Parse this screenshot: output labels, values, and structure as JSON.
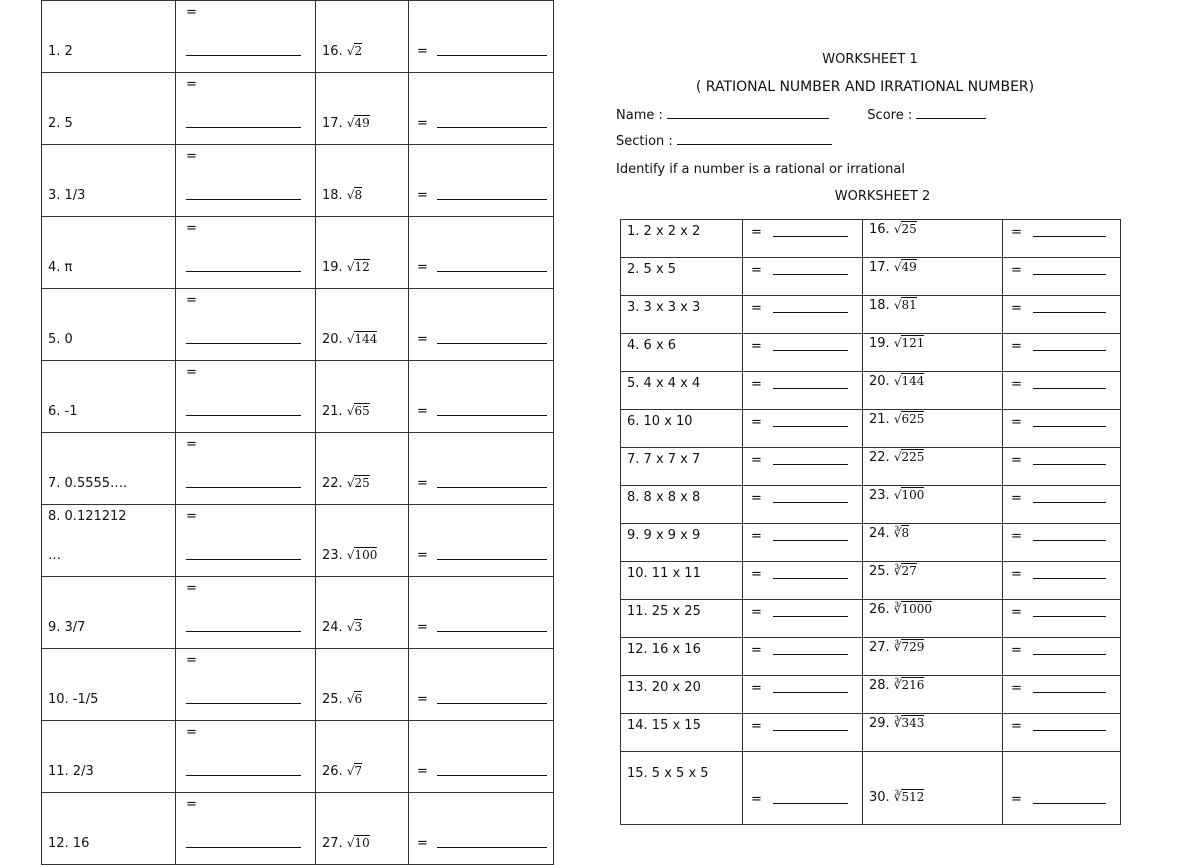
{
  "left_table": {
    "rows": [
      {
        "left": "1. 2",
        "num": "16.",
        "sym": "√",
        "rad": "2"
      },
      {
        "left": "2. 5",
        "num": "17.",
        "sym": "√",
        "rad": "49"
      },
      {
        "left": "3. 1/3",
        "num": "18.",
        "sym": "√",
        "rad": "8"
      },
      {
        "left": "4. π",
        "num": "19.",
        "sym": "√",
        "rad": "12"
      },
      {
        "left": "5. 0",
        "num": "20.",
        "sym": "√",
        "rad": "144"
      },
      {
        "left": "6. -1",
        "num": "21.",
        "sym": "√",
        "rad": "65"
      },
      {
        "left": "7. 0.5555….",
        "num": "22.",
        "sym": "√",
        "rad": "25"
      },
      {
        "left": "8. 0.121212",
        "left2": "…",
        "num": "23.",
        "sym": "√",
        "rad": "100"
      },
      {
        "left": "9. 3/7",
        "num": "24.",
        "sym": "√",
        "rad": "3"
      },
      {
        "left": "10. -1/5",
        "num": "25.",
        "sym": "√",
        "rad": "6"
      },
      {
        "left": "11. 2/3",
        "num": "26.",
        "sym": "√",
        "rad": "7"
      },
      {
        "left": "12. 16",
        "num": "27.",
        "sym": "√",
        "rad": "10"
      }
    ],
    "eq": "="
  },
  "header": {
    "title1": "WORKSHEET 1",
    "subtitle": "( RATIONAL NUMBER AND IRRATIONAL NUMBER)",
    "name_label": "Name :",
    "score_label": "Score :",
    "section_label": "Section :",
    "instruction": "Identify if a number is a rational or irrational",
    "title2": "WORKSHEET 2"
  },
  "right_table": {
    "rows": [
      {
        "left": "1. 2 x 2 x 2",
        "num": "16.",
        "sym": "√",
        "rad": "25"
      },
      {
        "left": "2. 5 x 5",
        "num": "17.",
        "sym": "√",
        "rad": "49"
      },
      {
        "left": "3. 3 x 3 x 3",
        "num": "18.",
        "sym": "√",
        "rad": "81"
      },
      {
        "left": "4. 6 x 6",
        "num": "19.",
        "sym": "√",
        "rad": "121"
      },
      {
        "left": "5. 4 x 4 x 4",
        "num": "20.",
        "sym": "√",
        "rad": "144"
      },
      {
        "left": "6. 10 x 10",
        "num": "21.",
        "sym": "√",
        "rad": "625"
      },
      {
        "left": "7. 7 x 7 x 7",
        "num": "22.",
        "sym": "√",
        "rad": "225"
      },
      {
        "left": "8. 8 x 8 x 8",
        "num": "23.",
        "sym": "√",
        "rad": "100"
      },
      {
        "left": "9. 9 x 9 x 9",
        "num": "24.",
        "sym": "∛",
        "rad": "8"
      },
      {
        "left": "10. 11 x 11",
        "num": "25.",
        "sym": "∛",
        "rad": "27"
      },
      {
        "left": "11. 25 x 25",
        "num": "26.",
        "sym": "∛",
        "rad": "1000"
      },
      {
        "left": "12. 16 x 16",
        "num": "27.",
        "sym": "∛",
        "rad": "729"
      },
      {
        "left": "13. 20 x 20",
        "num": "28.",
        "sym": "∛",
        "rad": "216"
      },
      {
        "left": "14. 15 x 15",
        "num": "29.",
        "sym": "∛",
        "rad": "343"
      },
      {
        "left": "15. 5 x 5 x 5",
        "num": "30.",
        "sym": "∛",
        "rad": "512"
      }
    ],
    "eq": "="
  }
}
